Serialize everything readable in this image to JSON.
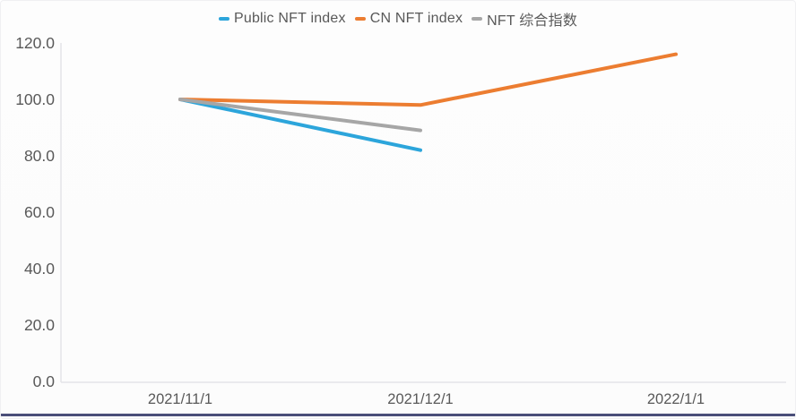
{
  "page": {
    "background": "#fcfcfc",
    "bottom_bar_color": "#4a4e79"
  },
  "chart_data": {
    "type": "line",
    "title": "",
    "xlabel": "",
    "ylabel": "",
    "categories": [
      "2021/11/1",
      "2021/12/1",
      "2022/1/1"
    ],
    "series": [
      {
        "name": "Public NFT index",
        "color": "#2CA5DB",
        "values": [
          100.0,
          82.0,
          null
        ]
      },
      {
        "name": "CN NFT index",
        "color": "#EC7D31",
        "values": [
          100.0,
          98.0,
          116.0
        ]
      },
      {
        "name": "NFT 综合指数",
        "color": "#A6A6A6",
        "values": [
          100.0,
          89.0,
          null
        ]
      }
    ],
    "ylim": [
      0,
      120
    ],
    "ytick_step": 20,
    "ytick_labels": [
      "0.0",
      "20.0",
      "40.0",
      "60.0",
      "80.0",
      "100.0",
      "120.0"
    ],
    "grid": false,
    "legend_position": "top",
    "axis_color": "#e4e4e8",
    "tick_text_color": "#595959"
  }
}
